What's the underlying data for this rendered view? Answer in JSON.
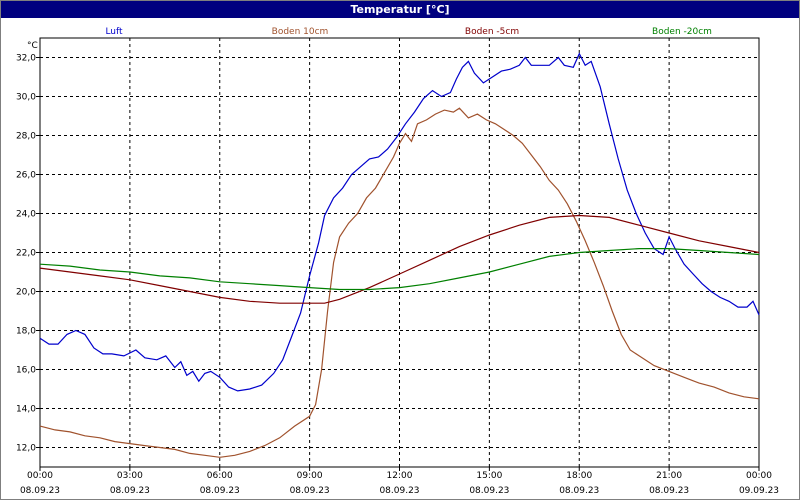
{
  "window": {
    "title": "Temperatur [°C]"
  },
  "chart_data": {
    "type": "line",
    "title": "Temperatur [°C]",
    "ylabel": "°C",
    "xlim_hours": [
      0,
      24
    ],
    "ylim": [
      11,
      33
    ],
    "grid": true,
    "legend_position": "top",
    "y_ticks": [
      "12,0",
      "14,0",
      "16,0",
      "18,0",
      "20,0",
      "22,0",
      "24,0",
      "26,0",
      "28,0",
      "30,0",
      "32,0"
    ],
    "y_tick_values": [
      12,
      14,
      16,
      18,
      20,
      22,
      24,
      26,
      28,
      30,
      32
    ],
    "x_ticks": [
      {
        "time": "00:00",
        "date": "08.09.23"
      },
      {
        "time": "03:00",
        "date": "08.09.23"
      },
      {
        "time": "06:00",
        "date": "08.09.23"
      },
      {
        "time": "09:00",
        "date": "08.09.23"
      },
      {
        "time": "12:00",
        "date": "08.09.23"
      },
      {
        "time": "15:00",
        "date": "08.09.23"
      },
      {
        "time": "18:00",
        "date": "08.09.23"
      },
      {
        "time": "21:00",
        "date": "08.09.23"
      },
      {
        "time": "00:00",
        "date": "09.09.23"
      }
    ],
    "series": [
      {
        "name": "Luft",
        "color": "#0000cc",
        "points": [
          [
            0,
            17.6
          ],
          [
            0.3,
            17.3
          ],
          [
            0.6,
            17.3
          ],
          [
            0.9,
            17.8
          ],
          [
            1.2,
            18.0
          ],
          [
            1.5,
            17.8
          ],
          [
            1.8,
            17.1
          ],
          [
            2.1,
            16.8
          ],
          [
            2.4,
            16.8
          ],
          [
            2.8,
            16.7
          ],
          [
            3.2,
            17.0
          ],
          [
            3.5,
            16.6
          ],
          [
            3.9,
            16.5
          ],
          [
            4.2,
            16.7
          ],
          [
            4.5,
            16.1
          ],
          [
            4.7,
            16.4
          ],
          [
            4.9,
            15.7
          ],
          [
            5.1,
            15.9
          ],
          [
            5.3,
            15.4
          ],
          [
            5.5,
            15.8
          ],
          [
            5.7,
            15.9
          ],
          [
            6.0,
            15.6
          ],
          [
            6.3,
            15.1
          ],
          [
            6.6,
            14.9
          ],
          [
            7.0,
            15.0
          ],
          [
            7.4,
            15.2
          ],
          [
            7.8,
            15.8
          ],
          [
            8.1,
            16.5
          ],
          [
            8.4,
            17.7
          ],
          [
            8.7,
            18.9
          ],
          [
            9.0,
            20.8
          ],
          [
            9.3,
            22.5
          ],
          [
            9.5,
            23.9
          ],
          [
            9.8,
            24.8
          ],
          [
            10.1,
            25.3
          ],
          [
            10.4,
            26.0
          ],
          [
            10.7,
            26.4
          ],
          [
            11.0,
            26.8
          ],
          [
            11.3,
            26.9
          ],
          [
            11.6,
            27.3
          ],
          [
            11.9,
            27.9
          ],
          [
            12.2,
            28.6
          ],
          [
            12.5,
            29.2
          ],
          [
            12.8,
            29.9
          ],
          [
            13.1,
            30.3
          ],
          [
            13.4,
            30.0
          ],
          [
            13.7,
            30.2
          ],
          [
            13.9,
            30.9
          ],
          [
            14.1,
            31.5
          ],
          [
            14.3,
            31.8
          ],
          [
            14.5,
            31.2
          ],
          [
            14.8,
            30.7
          ],
          [
            15.1,
            31.0
          ],
          [
            15.4,
            31.3
          ],
          [
            15.7,
            31.4
          ],
          [
            16.0,
            31.6
          ],
          [
            16.2,
            32.0
          ],
          [
            16.4,
            31.6
          ],
          [
            16.7,
            31.6
          ],
          [
            17.0,
            31.6
          ],
          [
            17.3,
            32.0
          ],
          [
            17.5,
            31.6
          ],
          [
            17.8,
            31.5
          ],
          [
            18.0,
            32.2
          ],
          [
            18.2,
            31.6
          ],
          [
            18.4,
            31.8
          ],
          [
            18.7,
            30.5
          ],
          [
            19.0,
            28.6
          ],
          [
            19.3,
            26.8
          ],
          [
            19.6,
            25.2
          ],
          [
            19.9,
            24.0
          ],
          [
            20.2,
            23.0
          ],
          [
            20.5,
            22.2
          ],
          [
            20.8,
            21.9
          ],
          [
            21.0,
            22.8
          ],
          [
            21.2,
            22.2
          ],
          [
            21.5,
            21.4
          ],
          [
            21.8,
            20.9
          ],
          [
            22.1,
            20.4
          ],
          [
            22.4,
            20.0
          ],
          [
            22.7,
            19.7
          ],
          [
            23.0,
            19.5
          ],
          [
            23.3,
            19.2
          ],
          [
            23.6,
            19.2
          ],
          [
            23.8,
            19.5
          ],
          [
            24.0,
            18.8
          ]
        ]
      },
      {
        "name": "Boden 10cm",
        "color": "#a0522d",
        "points": [
          [
            0,
            13.1
          ],
          [
            0.5,
            12.9
          ],
          [
            1.0,
            12.8
          ],
          [
            1.5,
            12.6
          ],
          [
            2.0,
            12.5
          ],
          [
            2.5,
            12.3
          ],
          [
            3.0,
            12.2
          ],
          [
            3.5,
            12.1
          ],
          [
            4.0,
            12.0
          ],
          [
            4.5,
            11.9
          ],
          [
            5.0,
            11.7
          ],
          [
            5.5,
            11.6
          ],
          [
            6.0,
            11.5
          ],
          [
            6.5,
            11.6
          ],
          [
            7.0,
            11.8
          ],
          [
            7.5,
            12.1
          ],
          [
            8.0,
            12.5
          ],
          [
            8.5,
            13.1
          ],
          [
            9.0,
            13.6
          ],
          [
            9.2,
            14.2
          ],
          [
            9.4,
            16.0
          ],
          [
            9.6,
            19.0
          ],
          [
            9.8,
            21.5
          ],
          [
            10.0,
            22.8
          ],
          [
            10.3,
            23.5
          ],
          [
            10.6,
            24.0
          ],
          [
            10.9,
            24.8
          ],
          [
            11.2,
            25.3
          ],
          [
            11.5,
            26.1
          ],
          [
            11.8,
            26.9
          ],
          [
            12.0,
            27.6
          ],
          [
            12.2,
            28.1
          ],
          [
            12.4,
            27.7
          ],
          [
            12.6,
            28.6
          ],
          [
            12.9,
            28.8
          ],
          [
            13.2,
            29.1
          ],
          [
            13.5,
            29.3
          ],
          [
            13.8,
            29.2
          ],
          [
            14.0,
            29.4
          ],
          [
            14.3,
            28.9
          ],
          [
            14.6,
            29.1
          ],
          [
            14.9,
            28.8
          ],
          [
            15.2,
            28.6
          ],
          [
            15.5,
            28.3
          ],
          [
            15.8,
            28.0
          ],
          [
            16.1,
            27.6
          ],
          [
            16.4,
            27.0
          ],
          [
            16.7,
            26.4
          ],
          [
            17.0,
            25.7
          ],
          [
            17.3,
            25.2
          ],
          [
            17.6,
            24.5
          ],
          [
            17.9,
            23.6
          ],
          [
            18.2,
            22.6
          ],
          [
            18.5,
            21.5
          ],
          [
            18.8,
            20.3
          ],
          [
            19.1,
            19.0
          ],
          [
            19.4,
            17.8
          ],
          [
            19.7,
            17.0
          ],
          [
            20.0,
            16.7
          ],
          [
            20.5,
            16.2
          ],
          [
            21.0,
            15.9
          ],
          [
            21.5,
            15.6
          ],
          [
            22.0,
            15.3
          ],
          [
            22.5,
            15.1
          ],
          [
            23.0,
            14.8
          ],
          [
            23.5,
            14.6
          ],
          [
            24.0,
            14.5
          ]
        ]
      },
      {
        "name": "Boden -5cm",
        "color": "#800000",
        "points": [
          [
            0,
            21.2
          ],
          [
            1,
            21.0
          ],
          [
            2,
            20.8
          ],
          [
            3,
            20.6
          ],
          [
            4,
            20.3
          ],
          [
            5,
            20.0
          ],
          [
            6,
            19.7
          ],
          [
            7,
            19.5
          ],
          [
            8,
            19.4
          ],
          [
            9,
            19.4
          ],
          [
            9.5,
            19.4
          ],
          [
            10,
            19.6
          ],
          [
            11,
            20.2
          ],
          [
            12,
            20.9
          ],
          [
            13,
            21.6
          ],
          [
            14,
            22.3
          ],
          [
            15,
            22.9
          ],
          [
            16,
            23.4
          ],
          [
            17,
            23.8
          ],
          [
            18,
            23.9
          ],
          [
            19,
            23.8
          ],
          [
            20,
            23.4
          ],
          [
            21,
            23.0
          ],
          [
            22,
            22.6
          ],
          [
            23,
            22.3
          ],
          [
            24,
            22.0
          ]
        ]
      },
      {
        "name": "Boden -20cm",
        "color": "#008000",
        "points": [
          [
            0,
            21.4
          ],
          [
            1,
            21.3
          ],
          [
            2,
            21.1
          ],
          [
            3,
            21.0
          ],
          [
            4,
            20.8
          ],
          [
            5,
            20.7
          ],
          [
            6,
            20.5
          ],
          [
            7,
            20.4
          ],
          [
            8,
            20.3
          ],
          [
            9,
            20.2
          ],
          [
            10,
            20.1
          ],
          [
            11,
            20.1
          ],
          [
            12,
            20.2
          ],
          [
            13,
            20.4
          ],
          [
            14,
            20.7
          ],
          [
            15,
            21.0
          ],
          [
            16,
            21.4
          ],
          [
            17,
            21.8
          ],
          [
            18,
            22.0
          ],
          [
            19,
            22.1
          ],
          [
            20,
            22.2
          ],
          [
            21,
            22.2
          ],
          [
            22,
            22.1
          ],
          [
            23,
            22.0
          ],
          [
            24,
            21.9
          ]
        ]
      }
    ]
  }
}
